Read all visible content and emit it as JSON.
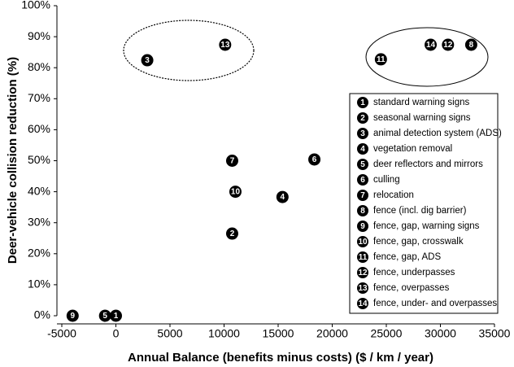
{
  "chart_data": {
    "type": "scatter",
    "xlabel": "Annual Balance (benefits minus costs) ($ / km / year)",
    "ylabel": "Deer-vehicle collision reduction (%)",
    "xlim": [
      -5000,
      35000
    ],
    "xticks": [
      -5000,
      0,
      5000,
      10000,
      15000,
      20000,
      25000,
      30000,
      35000
    ],
    "ylim": [
      0,
      100
    ],
    "yticks": [
      {
        "value": 0,
        "label": "0%"
      },
      {
        "value": 10,
        "label": "10%"
      },
      {
        "value": 20,
        "label": "20%"
      },
      {
        "value": 30,
        "label": "30%"
      },
      {
        "value": 40,
        "label": "40%"
      },
      {
        "value": 50,
        "label": "50%"
      },
      {
        "value": 60,
        "label": "60%"
      },
      {
        "value": 70,
        "label": "70%"
      },
      {
        "value": 80,
        "label": "80%"
      },
      {
        "value": 90,
        "label": "90%"
      },
      {
        "value": 100,
        "label": "100%"
      }
    ],
    "color": "#000000",
    "points": [
      {
        "label": "1",
        "name": "standard warning signs",
        "x": 0,
        "y": 0
      },
      {
        "label": "2",
        "name": "seasonal warning signs",
        "x": 10750,
        "y": 26.5
      },
      {
        "label": "3",
        "name": "animal detection system (ADS)",
        "x": 2900,
        "y": 82.4
      },
      {
        "label": "4",
        "name": "vegetation removal",
        "x": 15400,
        "y": 38.3
      },
      {
        "label": "5",
        "name": "deer reflectors and mirrors",
        "x": -1000,
        "y": 0
      },
      {
        "label": "6",
        "name": "culling",
        "x": 18350,
        "y": 50.4
      },
      {
        "label": "7",
        "name": "relocation",
        "x": 10750,
        "y": 50
      },
      {
        "label": "8",
        "name": "fence (incl. dig barrier)",
        "x": 32850,
        "y": 87.4
      },
      {
        "label": "9",
        "name": "fence, gap, warning signs",
        "x": -4000,
        "y": 0
      },
      {
        "label": "10",
        "name": "fence, gap, crosswalk",
        "x": 11050,
        "y": 40
      },
      {
        "label": "11",
        "name": "fence, gap, ADS",
        "x": 24500,
        "y": 82.7
      },
      {
        "label": "12",
        "name": "fence, underpasses",
        "x": 30700,
        "y": 87.4
      },
      {
        "label": "13",
        "name": "fence, overpasses",
        "x": 10100,
        "y": 87.4
      },
      {
        "label": "14",
        "name": "fence, under- and overpasses",
        "x": 29100,
        "y": 87.4
      }
    ]
  }
}
